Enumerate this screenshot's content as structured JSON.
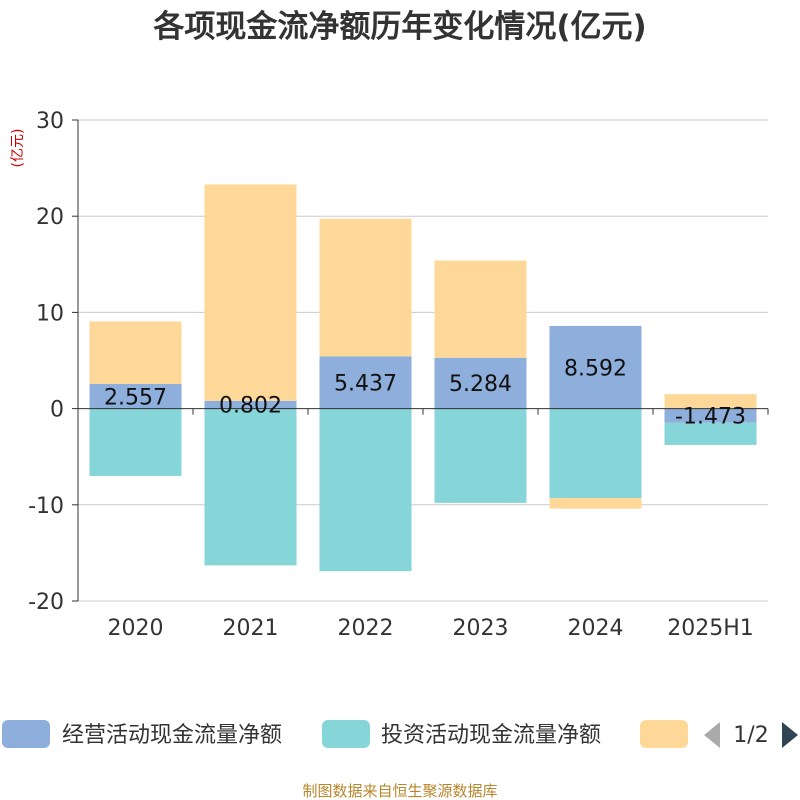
{
  "colors": {
    "operating": "#8eaedb",
    "investing": "#86d5d9",
    "financing": "#fdd899",
    "axis": "#333333",
    "grid": "#cccccc",
    "title": "#333333",
    "unit": "#cc0000",
    "source": "#b8862b",
    "pager_active": "#2f4554",
    "pager_inactive": "#aaaaaa"
  },
  "chart_data": {
    "type": "bar",
    "stacked": true,
    "title": "各项现金流净额历年变化情况(亿元)",
    "ylabel": "(亿元)",
    "ylim": [
      -20,
      30
    ],
    "yticks": [
      30,
      20,
      10,
      0,
      -10,
      -20
    ],
    "grid": true,
    "legend_position": "bottom",
    "categories": [
      "2020",
      "2021",
      "2022",
      "2023",
      "2024",
      "2025H1"
    ],
    "series": [
      {
        "name": "经营活动现金流量净额",
        "color_key": "operating",
        "values": [
          2.557,
          0.802,
          5.437,
          5.284,
          8.592,
          -1.473
        ],
        "labels": [
          "2.557",
          "0.802",
          "5.437",
          "5.284",
          "8.592",
          "-1.473"
        ]
      },
      {
        "name": "投资活动现金流量净额",
        "color_key": "investing",
        "values": [
          -7.0,
          -16.3,
          -16.9,
          -9.8,
          -9.3,
          -2.3
        ]
      },
      {
        "name": "",
        "color_key": "financing",
        "values": [
          6.5,
          22.5,
          14.3,
          10.1,
          -1.1,
          1.5
        ]
      }
    ]
  },
  "legend": {
    "pager": "1/2"
  },
  "source": "制图数据来自恒生聚源数据库"
}
